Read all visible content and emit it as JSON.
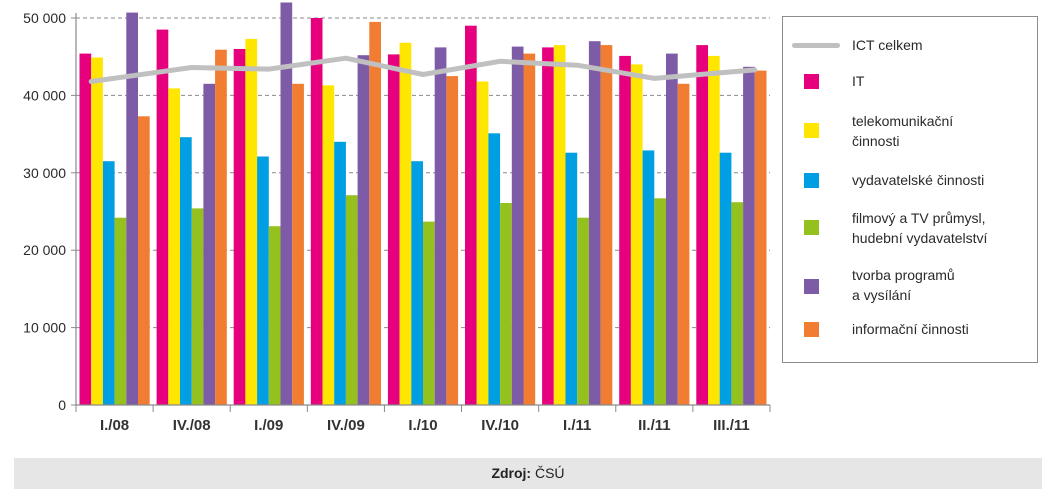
{
  "chart_data": {
    "type": "bar",
    "categories": [
      "I./08",
      "IV./08",
      "I./09",
      "IV./09",
      "I./10",
      "IV./10",
      "I./11",
      "II./11",
      "III./11"
    ],
    "ylim": [
      0,
      50000
    ],
    "yticks": [
      "0",
      "10 000",
      "20 000",
      "30 000",
      "40 000",
      "50 000"
    ],
    "grid": true,
    "legend_position": "right",
    "series": [
      {
        "name": "IT",
        "color": "#e6007e",
        "values": [
          45400,
          48500,
          46000,
          50000,
          45300,
          49000,
          46200,
          45100,
          46500
        ]
      },
      {
        "name": "telekomunikační\nčinnosti",
        "color": "#ffe600",
        "values": [
          44900,
          40900,
          47300,
          41300,
          46800,
          41800,
          46500,
          44000,
          45100
        ]
      },
      {
        "name": "vydavatelské činnosti",
        "color": "#009fe3",
        "values": [
          31500,
          34600,
          32100,
          34000,
          31500,
          35100,
          32600,
          32900,
          32600
        ]
      },
      {
        "name": "filmový a TV průmysl,\nhudební vydavatelství",
        "color": "#95c11f",
        "values": [
          24200,
          25400,
          23100,
          27100,
          23700,
          26100,
          24200,
          26700,
          26200
        ]
      },
      {
        "name": "tvorba programů\n  a vysílání",
        "color": "#7d5ba6",
        "values": [
          50700,
          41500,
          52000,
          45200,
          46200,
          46300,
          47000,
          45400,
          43700
        ]
      },
      {
        "name": "informační činnosti",
        "color": "#f07d32",
        "values": [
          37300,
          45900,
          41500,
          49500,
          42500,
          45400,
          46500,
          41500,
          43200
        ]
      }
    ],
    "line_series": {
      "name": "ICT celkem",
      "color": "#c0c0c0",
      "values": [
        41800,
        43600,
        43400,
        44800,
        42700,
        44400,
        43900,
        42200,
        43300
      ]
    }
  },
  "footer": {
    "source_label": "Zdroj:",
    "source_value": " ČSÚ"
  }
}
